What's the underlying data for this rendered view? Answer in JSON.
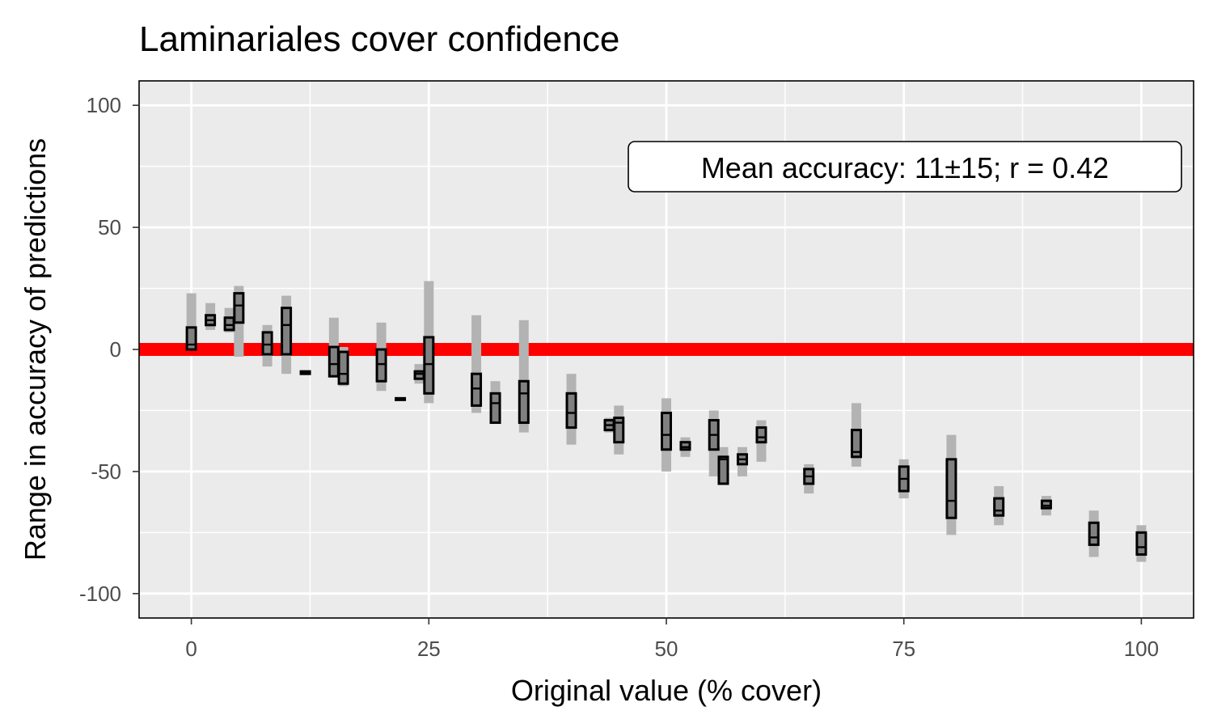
{
  "chart_data": {
    "type": "boxplot",
    "title": "Laminariales cover confidence",
    "xlabel": "Original value (% cover)",
    "ylabel": "Range in accuracy of predictions",
    "xlim": [
      -5.5,
      105.5
    ],
    "ylim": [
      -110,
      110
    ],
    "x_ticks": [
      0,
      25,
      50,
      75,
      100
    ],
    "x_tick_labels": [
      "0",
      "25",
      "50",
      "75",
      "100"
    ],
    "y_ticks": [
      -100,
      -50,
      0,
      50,
      100
    ],
    "y_tick_labels": [
      "-100",
      "-50",
      "0",
      "50",
      "100"
    ],
    "grid": true,
    "panel_background": "#ebebeb",
    "reference_line": {
      "y": 0,
      "color": "#ff0000"
    },
    "annotation": "Mean accuracy: 11±15; r = 0.42",
    "colors": {
      "whisker": "#b3b3b3",
      "box_fill": "#808080",
      "box_outline": "#000000"
    },
    "boxes": [
      {
        "x": 0,
        "lower": 0,
        "q1": 0,
        "median": 2,
        "q3": 9,
        "upper": 23
      },
      {
        "x": 2,
        "lower": 8,
        "q1": 10,
        "median": 12,
        "q3": 14,
        "upper": 19
      },
      {
        "x": 4,
        "lower": 7,
        "q1": 8,
        "median": 10,
        "q3": 13,
        "upper": 17
      },
      {
        "x": 5,
        "lower": -3,
        "q1": 11,
        "median": 18,
        "q3": 23,
        "upper": 26
      },
      {
        "x": 8,
        "lower": -7,
        "q1": -2,
        "median": 2,
        "q3": 7,
        "upper": 10
      },
      {
        "x": 10,
        "lower": -10,
        "q1": -2,
        "median": 10,
        "q3": 17,
        "upper": 22
      },
      {
        "x": 12,
        "lower": -10,
        "q1": -10,
        "median": -10,
        "q3": -9,
        "upper": -9
      },
      {
        "x": 15,
        "lower": -11,
        "q1": -11,
        "median": -6,
        "q3": 1,
        "upper": 13
      },
      {
        "x": 16,
        "lower": -15,
        "q1": -14,
        "median": -10,
        "q3": -1,
        "upper": 1
      },
      {
        "x": 20,
        "lower": -17,
        "q1": -13,
        "median": -6,
        "q3": 0,
        "upper": 11
      },
      {
        "x": 22,
        "lower": -20,
        "q1": -20,
        "median": -20,
        "q3": -20,
        "upper": -20
      },
      {
        "x": 24,
        "lower": -14,
        "q1": -12,
        "median": -10,
        "q3": -9,
        "upper": -6
      },
      {
        "x": 25,
        "lower": -22,
        "q1": -18,
        "median": -6,
        "q3": 5,
        "upper": 28
      },
      {
        "x": 30,
        "lower": -26,
        "q1": -23,
        "median": -16,
        "q3": -10,
        "upper": 14
      },
      {
        "x": 32,
        "lower": -29,
        "q1": -30,
        "median": -22,
        "q3": -18,
        "upper": -13
      },
      {
        "x": 35,
        "lower": -34,
        "q1": -30,
        "median": -18,
        "q3": -13,
        "upper": 12
      },
      {
        "x": 40,
        "lower": -39,
        "q1": -32,
        "median": -26,
        "q3": -18,
        "upper": -10
      },
      {
        "x": 44,
        "lower": -34,
        "q1": -33,
        "median": -31,
        "q3": -29,
        "upper": -28
      },
      {
        "x": 45,
        "lower": -43,
        "q1": -38,
        "median": -30,
        "q3": -28,
        "upper": -23
      },
      {
        "x": 50,
        "lower": -50,
        "q1": -41,
        "median": -35,
        "q3": -26,
        "upper": -20
      },
      {
        "x": 52,
        "lower": -44,
        "q1": -41,
        "median": -40,
        "q3": -38,
        "upper": -36
      },
      {
        "x": 55,
        "lower": -52,
        "q1": -41,
        "median": -35,
        "q3": -29,
        "upper": -25
      },
      {
        "x": 56,
        "lower": -55,
        "q1": -55,
        "median": -45,
        "q3": -44,
        "upper": -40
      },
      {
        "x": 58,
        "lower": -52,
        "q1": -47,
        "median": -45,
        "q3": -43,
        "upper": -40
      },
      {
        "x": 60,
        "lower": -46,
        "q1": -38,
        "median": -36,
        "q3": -32,
        "upper": -29
      },
      {
        "x": 65,
        "lower": -59,
        "q1": -55,
        "median": -52,
        "q3": -49,
        "upper": -47
      },
      {
        "x": 70,
        "lower": -48,
        "q1": -44,
        "median": -42,
        "q3": -33,
        "upper": -22
      },
      {
        "x": 75,
        "lower": -61,
        "q1": -58,
        "median": -53,
        "q3": -48,
        "upper": -45
      },
      {
        "x": 80,
        "lower": -76,
        "q1": -69,
        "median": -62,
        "q3": -45,
        "upper": -35
      },
      {
        "x": 85,
        "lower": -72,
        "q1": -68,
        "median": -66,
        "q3": -61,
        "upper": -56
      },
      {
        "x": 90,
        "lower": -68,
        "q1": -65,
        "median": -64,
        "q3": -62,
        "upper": -60
      },
      {
        "x": 95,
        "lower": -85,
        "q1": -80,
        "median": -77,
        "q3": -71,
        "upper": -66
      },
      {
        "x": 100,
        "lower": -87,
        "q1": -84,
        "median": -81,
        "q3": -75,
        "upper": -72
      }
    ]
  }
}
